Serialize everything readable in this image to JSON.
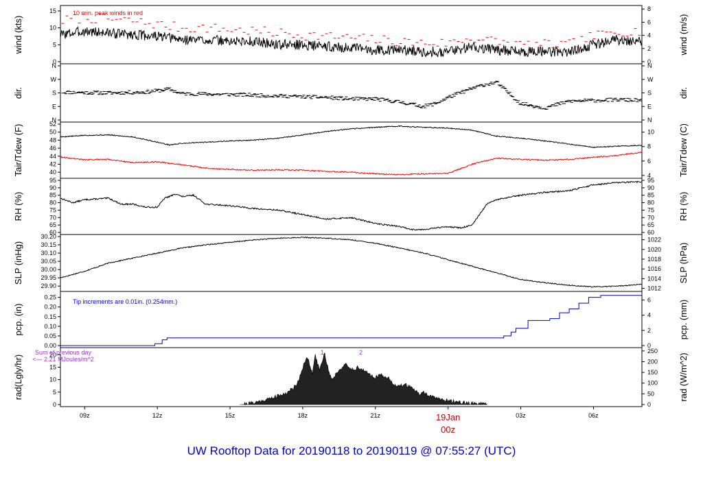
{
  "title": "UW Rooftop Data for 20190118  to  20190119 @ 07:55:27  (UTC)",
  "colors": {
    "primary": "#000000",
    "peak": "#ff0000",
    "dew": "#ff0000",
    "precip": "#0000cc",
    "annotation_blue": "#0000cc",
    "annotation_purple": "#9933cc",
    "date_marker": "#cc0000",
    "title": "#0000cc"
  },
  "chart_data": {
    "type": "line",
    "x_unit": "hour offset from 08z on 20190118",
    "x_range": [
      0,
      24
    ],
    "x_ticks": [
      {
        "x": 1,
        "label": "09z"
      },
      {
        "x": 4,
        "label": "12z"
      },
      {
        "x": 7,
        "label": "15z"
      },
      {
        "x": 10,
        "label": "18z"
      },
      {
        "x": 13,
        "label": "21z"
      },
      {
        "x": 19,
        "label": "03z"
      },
      {
        "x": 22,
        "label": "06z"
      }
    ],
    "date_marker": {
      "x": 16,
      "label_line1": "19Jan",
      "label_line2": "00z"
    },
    "panels": [
      {
        "id": "wind",
        "ylabel_left": "wind (kts)",
        "ylabel_right": "wind (m/s)",
        "ylim": [
          0,
          16
        ],
        "left_ticks": [
          0,
          5,
          10,
          15
        ],
        "right_ticks": [
          {
            "v": 0,
            "l": "0"
          },
          {
            "v": 3.888,
            "l": "2"
          },
          {
            "v": 7.776,
            "l": "4"
          },
          {
            "v": 11.664,
            "l": "6"
          },
          {
            "v": 15.552,
            "l": "8"
          }
        ],
        "annotation": "10 min. peak winds in red",
        "series": [
          {
            "style": "line",
            "color": "#000000",
            "noise": 1.5,
            "seed": 3,
            "x": [
              0,
              1,
              2,
              3,
              4,
              5,
              6,
              7,
              8,
              9,
              10,
              11,
              12,
              13,
              14,
              15,
              16,
              17,
              18,
              19,
              20,
              21,
              22,
              23,
              24
            ],
            "y": [
              8,
              9,
              8.5,
              8,
              7.5,
              6.5,
              6.5,
              6,
              6,
              5,
              5,
              4.5,
              4,
              3.5,
              3.5,
              3,
              3,
              4.5,
              3.5,
              3,
              3,
              3,
              5,
              6.5,
              6
            ]
          },
          {
            "style": "dash",
            "color": "#ff0000",
            "noise": 1.5,
            "seed": 7,
            "x": [
              0,
              1,
              2,
              3,
              4,
              5,
              6,
              7,
              8,
              9,
              10,
              11,
              12,
              13,
              14,
              15,
              16,
              17,
              18,
              19,
              20,
              21,
              22,
              23,
              24
            ],
            "y": [
              12,
              13,
              12.5,
              12,
              11,
              10,
              10,
              9.5,
              9,
              8.5,
              8,
              7.5,
              7,
              6.5,
              6,
              5.5,
              5.5,
              7,
              6,
              5,
              5,
              5,
              7.5,
              9,
              9
            ]
          }
        ]
      },
      {
        "id": "dir",
        "ylabel_left": "dir.",
        "ylabel_right": "dir.",
        "ylim": [
          0,
          360
        ],
        "left_ticks": [
          {
            "v": 0,
            "l": "N"
          },
          {
            "v": 90,
            "l": "E"
          },
          {
            "v": 180,
            "l": "S"
          },
          {
            "v": 270,
            "l": "W"
          },
          {
            "v": 360,
            "l": "N"
          }
        ],
        "series": [
          {
            "style": "dash",
            "color": "#000000",
            "noise": 12,
            "seed": 11,
            "x": [
              0,
              2,
              3.5,
              4.5,
              5,
              7,
              8,
              9,
              10,
              11,
              12,
              13,
              14,
              15,
              15.5,
              16,
              17,
              17.5,
              18,
              19,
              20,
              21,
              22,
              23,
              24
            ],
            "y": [
              185,
              180,
              185,
              205,
              175,
              170,
              165,
              160,
              155,
              150,
              140,
              140,
              120,
              90,
              110,
              150,
              210,
              235,
              250,
              110,
              80,
              125,
              130,
              135,
              130
            ]
          }
        ]
      },
      {
        "id": "temp",
        "ylabel_left": "Tair/Tdew (F)",
        "ylabel_right": "Tair/Tdew (C)",
        "ylim": [
          39,
          52
        ],
        "left_ticks": [
          40,
          42,
          44,
          46,
          48,
          50,
          52
        ],
        "right_ticks": [
          {
            "v": 39.2,
            "l": "4"
          },
          {
            "v": 42.8,
            "l": "6"
          },
          {
            "v": 46.4,
            "l": "8"
          },
          {
            "v": 50,
            "l": "10"
          }
        ],
        "series": [
          {
            "style": "line",
            "color": "#000000",
            "noise": 0.12,
            "seed": 5,
            "x": [
              0,
              1,
              2,
              3,
              4,
              4.5,
              5,
              6,
              7,
              8,
              9,
              10,
              11,
              12,
              13,
              14,
              15,
              16,
              17,
              18,
              19,
              20,
              21,
              22,
              23,
              24
            ],
            "y": [
              48.8,
              49.2,
              49.3,
              48.8,
              47.5,
              46.8,
              47.2,
              47.5,
              47.8,
              48.0,
              48.5,
              49.3,
              50.2,
              50.8,
              51.2,
              51.5,
              51.2,
              51.0,
              50.5,
              49.0,
              48.5,
              47.8,
              47.0,
              46.2,
              46.5,
              46.7
            ]
          },
          {
            "style": "line",
            "color": "#ff0000",
            "noise": 0.15,
            "seed": 9,
            "x": [
              0,
              1,
              2,
              3,
              4,
              5,
              6,
              7,
              8,
              9,
              10,
              11,
              12,
              13,
              14,
              15,
              16,
              17,
              18,
              19,
              20,
              21,
              22,
              23,
              24
            ],
            "y": [
              43.8,
              43.1,
              43.2,
              42.4,
              42.6,
              41.9,
              41.0,
              40.7,
              40.5,
              40.6,
              40.5,
              40.2,
              40.0,
              39.6,
              39.4,
              39.6,
              39.7,
              42.0,
              43.5,
              43.2,
              43.0,
              43.2,
              43.7,
              44.2,
              45.0
            ]
          }
        ]
      },
      {
        "id": "rh",
        "ylabel_left": "RH (%)",
        "ylabel_right": "RH (%)",
        "ylim": [
          60,
          95
        ],
        "left_ticks": [
          60,
          65,
          70,
          75,
          80,
          85,
          90,
          95
        ],
        "right_ticks": [
          {
            "v": 60,
            "l": "60"
          },
          {
            "v": 65,
            "l": "65"
          },
          {
            "v": 70,
            "l": "70"
          },
          {
            "v": 75,
            "l": "75"
          },
          {
            "v": 80,
            "l": "80"
          },
          {
            "v": 85,
            "l": "85"
          },
          {
            "v": 90,
            "l": "90"
          },
          {
            "v": 95,
            "l": "95"
          }
        ],
        "series": [
          {
            "style": "line",
            "color": "#000000",
            "noise": 0.5,
            "seed": 13,
            "x": [
              0,
              0.5,
              1,
              2,
              2.5,
              3,
              3.5,
              4,
              4.3,
              4.8,
              5,
              5.5,
              6,
              7,
              8,
              9,
              10,
              11,
              12,
              13,
              14,
              14.5,
              15,
              16,
              16.5,
              17,
              17.3,
              17.6,
              18,
              19,
              20,
              21,
              22,
              23,
              24
            ],
            "y": [
              83,
              80,
              82,
              83,
              79,
              79,
              77,
              77,
              83,
              86,
              84,
              85,
              79,
              78,
              76,
              75,
              72,
              69,
              70,
              66,
              64,
              62,
              62,
              64,
              63,
              65,
              72,
              79,
              82,
              85,
              87,
              88,
              92,
              93.5,
              94
            ]
          }
        ]
      },
      {
        "id": "slp",
        "ylabel_left": "SLP (inHg)",
        "ylabel_right": "SLP (hPa)",
        "ylim": [
          29.88,
          30.2
        ],
        "left_ticks": [
          {
            "v": 29.9,
            "l": "29.90"
          },
          {
            "v": 29.95,
            "l": "29.95"
          },
          {
            "v": 30.0,
            "l": "30.00"
          },
          {
            "v": 30.05,
            "l": "30.05"
          },
          {
            "v": 30.1,
            "l": "30.10"
          },
          {
            "v": 30.15,
            "l": "30.15"
          },
          {
            "v": 30.2,
            "l": "30.20"
          }
        ],
        "right_ticks": [
          {
            "v": 29.886,
            "l": "1012"
          },
          {
            "v": 29.945,
            "l": "1014"
          },
          {
            "v": 30.004,
            "l": "1016"
          },
          {
            "v": 30.063,
            "l": "1018"
          },
          {
            "v": 30.122,
            "l": "1020"
          },
          {
            "v": 30.181,
            "l": "1022"
          }
        ],
        "series": [
          {
            "style": "line",
            "color": "#000000",
            "noise": 0.003,
            "seed": 17,
            "x": [
              0,
              1,
              2,
              3,
              4,
              5,
              6,
              7,
              8,
              9,
              10,
              11,
              12,
              13,
              14,
              15,
              16,
              17,
              18,
              19,
              20,
              21,
              22,
              23,
              24
            ],
            "y": [
              29.95,
              29.99,
              30.04,
              30.07,
              30.1,
              30.13,
              30.15,
              30.165,
              30.18,
              30.19,
              30.195,
              30.19,
              30.18,
              30.16,
              30.13,
              30.1,
              30.06,
              30.02,
              29.98,
              29.94,
              29.92,
              29.905,
              29.895,
              29.9,
              29.91
            ]
          }
        ]
      },
      {
        "id": "pcp",
        "ylabel_left": "pcp. (in)",
        "ylabel_right": "pcp. (mm)",
        "ylim": [
          0,
          0.27
        ],
        "left_ticks": [
          {
            "v": 0,
            "l": "0.00"
          },
          {
            "v": 0.05,
            "l": "0.05"
          },
          {
            "v": 0.1,
            "l": "0.10"
          },
          {
            "v": 0.15,
            "l": "0.15"
          },
          {
            "v": 0.2,
            "l": "0.20"
          },
          {
            "v": 0.25,
            "l": "0.25"
          }
        ],
        "right_ticks": [
          {
            "v": 0,
            "l": "0"
          },
          {
            "v": 0.0787,
            "l": "2"
          },
          {
            "v": 0.1575,
            "l": "4"
          },
          {
            "v": 0.2362,
            "l": "6"
          }
        ],
        "annotation": "Tip increments are 0.01in. (0.254mm.)",
        "series": [
          {
            "style": "step",
            "color": "#0000cc",
            "x": [
              0,
              3.9,
              4.2,
              4.4,
              17.6,
              18.3,
              18.6,
              18.8,
              19.3,
              20.2,
              20.6,
              21.0,
              21.4,
              21.8,
              22.3,
              24
            ],
            "y": [
              0,
              0.01,
              0.03,
              0.04,
              0.04,
              0.05,
              0.07,
              0.09,
              0.13,
              0.14,
              0.17,
              0.19,
              0.22,
              0.25,
              0.26,
              0.26
            ]
          }
        ]
      },
      {
        "id": "rad",
        "ylabel_left": "rad(Lgly/hr)",
        "ylabel_right": "rad (W/m^2)",
        "ylim": [
          0,
          22
        ],
        "left_ticks": [
          0,
          5,
          10,
          15,
          20
        ],
        "right_ticks": [
          {
            "v": 0,
            "l": "0"
          },
          {
            "v": 4.3,
            "l": "50"
          },
          {
            "v": 8.6,
            "l": "100"
          },
          {
            "v": 12.9,
            "l": "150"
          },
          {
            "v": 17.2,
            "l": "200"
          },
          {
            "v": 21.5,
            "l": "250"
          }
        ],
        "annotation_lines": [
          "Sum of previous day",
          "<--- 2.21 MJoules/m^2"
        ],
        "markers": [
          {
            "x": 10.8,
            "label": "1"
          },
          {
            "x": 12.4,
            "label": "2"
          }
        ],
        "series": [
          {
            "style": "area",
            "color": "#000000",
            "noise": 0.8,
            "seed": 21,
            "x": [
              7.4,
              8.0,
              8.5,
              9.0,
              9.3,
              9.6,
              9.8,
              10.0,
              10.2,
              10.4,
              10.5,
              10.7,
              10.9,
              11.0,
              11.2,
              11.5,
              11.8,
              12.0,
              12.3,
              12.6,
              13.0,
              13.3,
              13.6,
              13.9,
              14.2,
              14.5,
              14.8,
              15.0,
              15.3,
              15.6,
              16.0,
              16.5,
              17.0,
              17.6
            ],
            "y": [
              0,
              0.8,
              2,
              3.5,
              4.5,
              6.5,
              9,
              15,
              19,
              12,
              20,
              14,
              21,
              16,
              10,
              14,
              16,
              14,
              15,
              13,
              11,
              12,
              10,
              7,
              8,
              7,
              4,
              5,
              3,
              2.5,
              1.5,
              1,
              0.4,
              0
            ]
          }
        ]
      }
    ]
  }
}
